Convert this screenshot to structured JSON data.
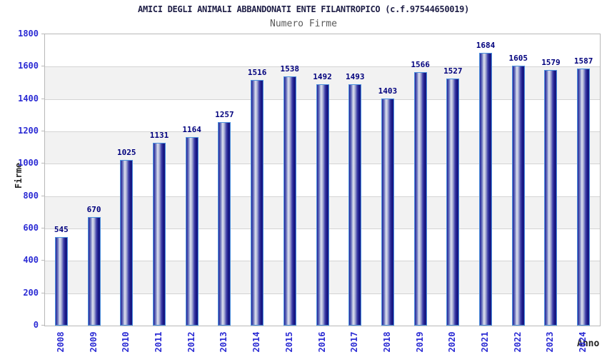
{
  "header": {
    "title": "AMICI DEGLI ANIMALI ABBANDONATI ENTE FILANTROPICO (c.f.97544650019)",
    "subtitle": "Numero Firme"
  },
  "chart_data": {
    "type": "bar",
    "title": "AMICI DEGLI ANIMALI ABBANDONATI ENTE FILANTROPICO (c.f.97544650019)",
    "subtitle": "Numero Firme",
    "categories": [
      "2008",
      "2009",
      "2010",
      "2011",
      "2012",
      "2013",
      "2014",
      "2015",
      "2016",
      "2017",
      "2018",
      "2019",
      "2020",
      "2021",
      "2022",
      "2023",
      "2024"
    ],
    "values": [
      545,
      670,
      1025,
      1131,
      1164,
      1257,
      1516,
      1538,
      1492,
      1493,
      1403,
      1566,
      1527,
      1684,
      1605,
      1579,
      1587
    ],
    "xlabel": "Anno",
    "ylabel": "Firme",
    "ylim": [
      0,
      1800
    ],
    "ytick_step": 200,
    "yticks": [
      0,
      200,
      400,
      600,
      800,
      1000,
      1200,
      1400,
      1600,
      1800
    ],
    "legend": "none",
    "grid": "horizontal-bands",
    "value_labels": "above-bars",
    "colors": {
      "title": "#1e1e46",
      "subtitle": "#5a5a5a",
      "tick_label": "#2b2bd4",
      "value_label": "#00007d",
      "axis_title": "#222222",
      "bar_dark": "#1b1b8c",
      "bar_mid": "#6a74bd",
      "bar_highlight": "#dfe1ee",
      "bar_border": "#4d92dd",
      "band_gray": "#f2f2f2",
      "gridline": "#d4d4d4",
      "plot_border": "#b8b8b8",
      "background": "#ffffff"
    }
  }
}
